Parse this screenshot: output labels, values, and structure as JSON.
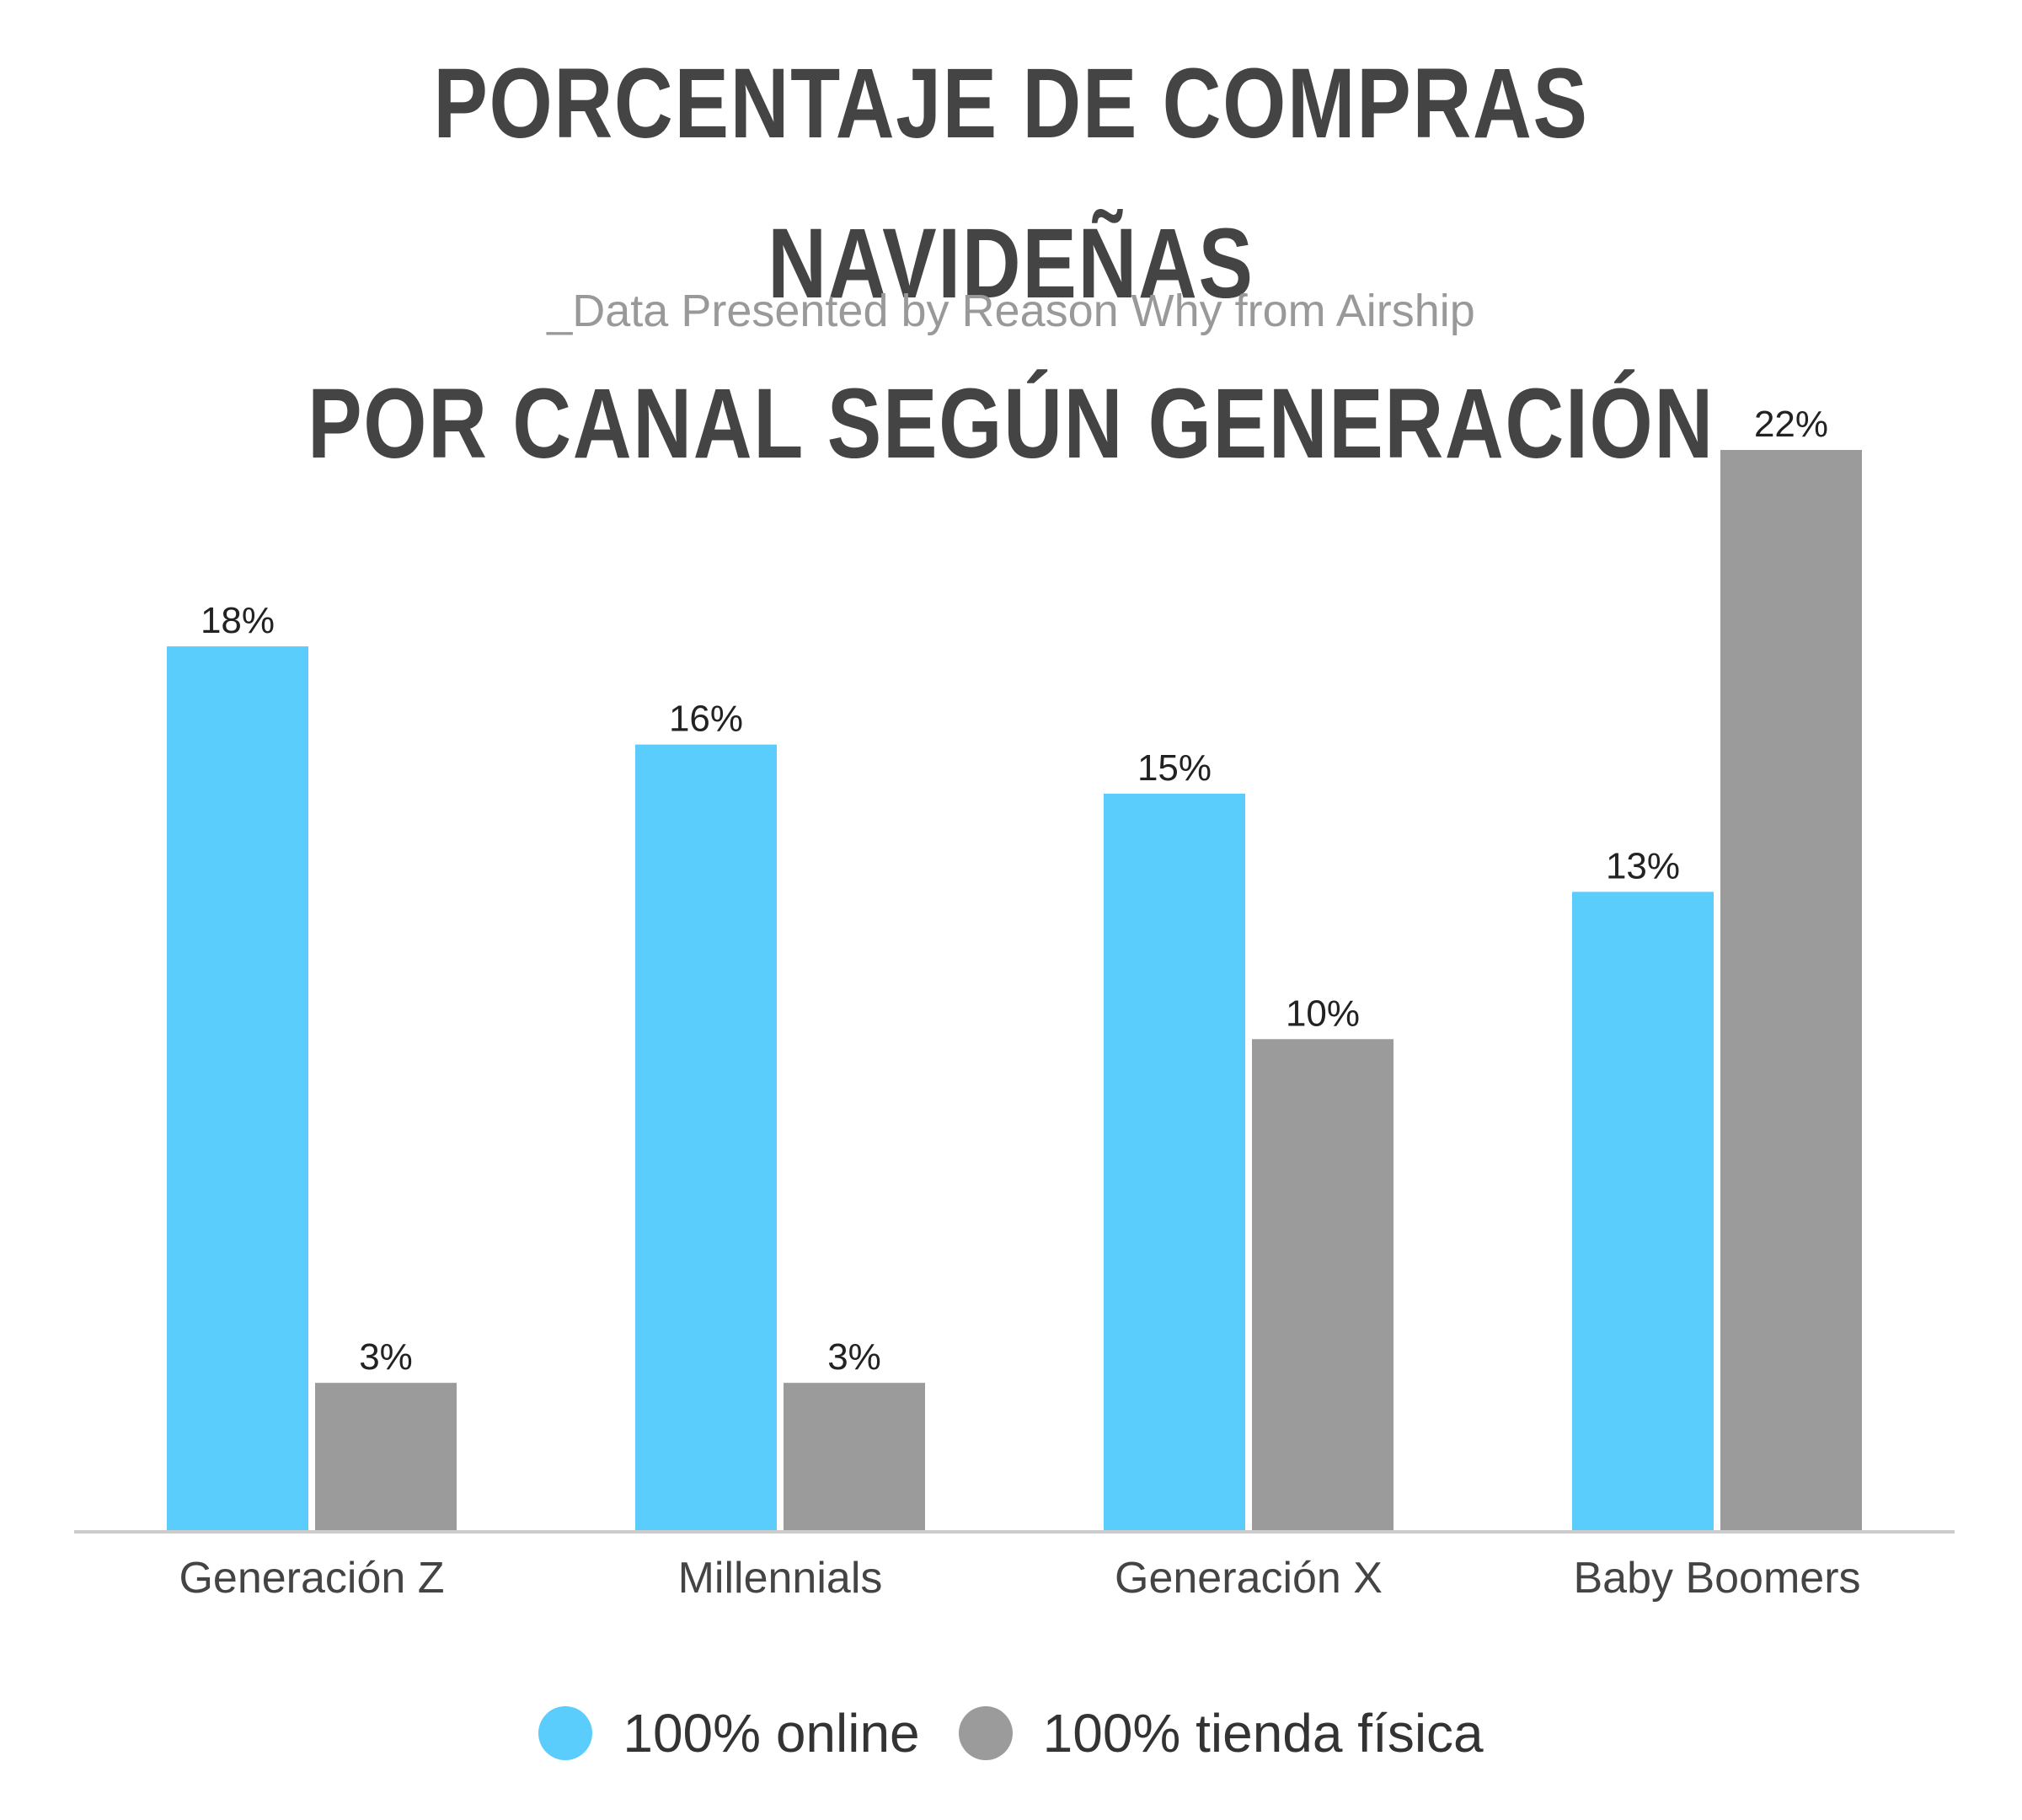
{
  "title_lines": [
    "PORCENTAJE DE COMPRAS NAVIDEÑAS",
    "POR CANAL SEGÚN GENERACIÓN"
  ],
  "subtitle": "_Data Presented by Reason Why from Airship",
  "colors": {
    "online": "#5BCDFC",
    "tienda": "#9B9B9B",
    "axis": "#CCCCCC"
  },
  "chart_data": {
    "type": "bar",
    "title": "PORCENTAJE DE COMPRAS NAVIDEÑAS POR CANAL SEGÚN GENERACIÓN",
    "subtitle": "_Data Presented by Reason Why from Airship",
    "categories": [
      "Generación Z",
      "Millennials",
      "Generación X",
      "Baby Boomers"
    ],
    "series": [
      {
        "name": "100% online",
        "values": [
          18,
          16,
          15,
          13
        ],
        "color": "#5BCDFC"
      },
      {
        "name": "100% tienda física",
        "values": [
          3,
          3,
          10,
          22
        ],
        "color": "#9B9B9B"
      }
    ],
    "data_labels": [
      [
        "18%",
        "16%",
        "15%",
        "13%"
      ],
      [
        "3%",
        "3%",
        "10%",
        "22%"
      ]
    ],
    "ylim": [
      0,
      22
    ],
    "grid": false,
    "legend": "bottom",
    "xlabel": "",
    "ylabel": ""
  },
  "legend": {
    "items": [
      {
        "label": "100% online",
        "color": "#5BCDFC"
      },
      {
        "label": "100% tienda física",
        "color": "#9B9B9B"
      }
    ]
  }
}
